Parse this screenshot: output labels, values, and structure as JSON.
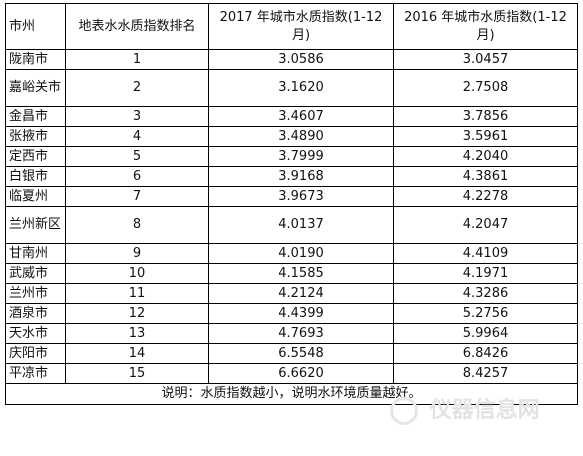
{
  "table": {
    "headers": {
      "city": "市州",
      "rank": "地表水水质指数排名",
      "index_2017": "2017 年城市水质指数(1-12月)",
      "index_2016": "2016 年城市水质指数(1-12月)"
    },
    "rows": [
      {
        "city": "陇南市",
        "rank": "1",
        "index_2017": "3.0586",
        "index_2016": "3.0457"
      },
      {
        "city": "嘉峪关市",
        "rank": "2",
        "index_2017": "3.1620",
        "index_2016": "2.7508"
      },
      {
        "city": "金昌市",
        "rank": "3",
        "index_2017": "3.4607",
        "index_2016": "3.7856"
      },
      {
        "city": "张掖市",
        "rank": "4",
        "index_2017": "3.4890",
        "index_2016": "3.5961"
      },
      {
        "city": "定西市",
        "rank": "5",
        "index_2017": "3.7999",
        "index_2016": "4.2040"
      },
      {
        "city": "白银市",
        "rank": "6",
        "index_2017": "3.9168",
        "index_2016": "4.3861"
      },
      {
        "city": "临夏州",
        "rank": "7",
        "index_2017": "3.9673",
        "index_2016": "4.2278"
      },
      {
        "city": "兰州新区",
        "rank": "8",
        "index_2017": "4.0137",
        "index_2016": "4.2047"
      },
      {
        "city": "甘南州",
        "rank": "9",
        "index_2017": "4.0190",
        "index_2016": "4.4109"
      },
      {
        "city": "武威市",
        "rank": "10",
        "index_2017": "4.1585",
        "index_2016": "4.1971"
      },
      {
        "city": "兰州市",
        "rank": "11",
        "index_2017": "4.2124",
        "index_2016": "4.3286"
      },
      {
        "city": "酒泉市",
        "rank": "12",
        "index_2017": "4.4399",
        "index_2016": "5.2756"
      },
      {
        "city": "天水市",
        "rank": "13",
        "index_2017": "4.7693",
        "index_2016": "5.9964"
      },
      {
        "city": "庆阳市",
        "rank": "14",
        "index_2017": "6.5548",
        "index_2016": "6.8426"
      },
      {
        "city": "平凉市",
        "rank": "15",
        "index_2017": "6.6620",
        "index_2016": "8.4257"
      }
    ],
    "note": "说明：水质指数越小，说明水环境质量越好。"
  },
  "watermark": {
    "text": "仪器信息网"
  }
}
